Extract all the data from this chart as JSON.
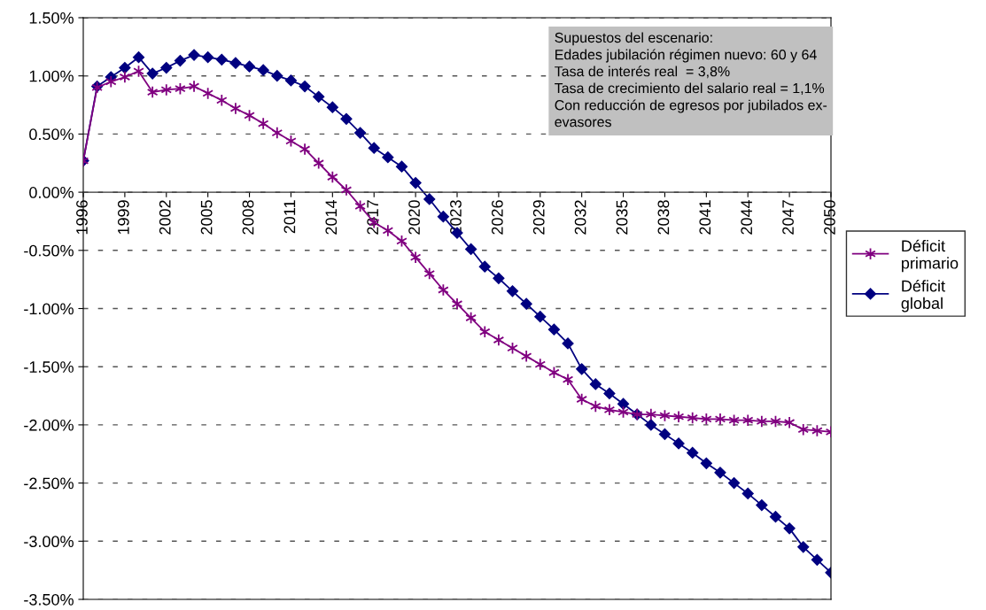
{
  "chart_data": {
    "type": "line",
    "x": [
      1996,
      1997,
      1998,
      1999,
      2000,
      2001,
      2002,
      2003,
      2004,
      2005,
      2006,
      2007,
      2008,
      2009,
      2010,
      2011,
      2012,
      2013,
      2014,
      2015,
      2016,
      2017,
      2018,
      2019,
      2020,
      2021,
      2022,
      2023,
      2024,
      2025,
      2026,
      2027,
      2028,
      2029,
      2030,
      2031,
      2032,
      2033,
      2034,
      2035,
      2036,
      2037,
      2038,
      2039,
      2040,
      2041,
      2042,
      2043,
      2044,
      2045,
      2046,
      2047,
      2048,
      2049,
      2050
    ],
    "series": [
      {
        "name": "Déficit primario",
        "color": "#800080",
        "marker": "cross",
        "values": [
          0.27,
          0.9,
          0.95,
          0.99,
          1.04,
          0.86,
          0.88,
          0.89,
          0.91,
          0.85,
          0.79,
          0.72,
          0.66,
          0.59,
          0.51,
          0.44,
          0.37,
          0.25,
          0.13,
          0.02,
          -0.12,
          -0.26,
          -0.33,
          -0.42,
          -0.56,
          -0.7,
          -0.84,
          -0.96,
          -1.08,
          -1.2,
          -1.27,
          -1.34,
          -1.41,
          -1.48,
          -1.55,
          -1.61,
          -1.78,
          -1.84,
          -1.87,
          -1.89,
          -1.91,
          -1.91,
          -1.92,
          -1.93,
          -1.94,
          -1.95,
          -1.95,
          -1.96,
          -1.96,
          -1.97,
          -1.97,
          -1.98,
          -2.04,
          -2.05,
          -2.06
        ]
      },
      {
        "name": "Déficit global",
        "color": "#000080",
        "marker": "diamond",
        "values": [
          0.27,
          0.91,
          0.99,
          1.07,
          1.16,
          1.02,
          1.07,
          1.13,
          1.18,
          1.16,
          1.14,
          1.11,
          1.08,
          1.05,
          1.0,
          0.96,
          0.91,
          0.82,
          0.73,
          0.63,
          0.51,
          0.38,
          0.3,
          0.22,
          0.08,
          -0.06,
          -0.21,
          -0.35,
          -0.49,
          -0.64,
          -0.74,
          -0.85,
          -0.96,
          -1.07,
          -1.18,
          -1.3,
          -1.52,
          -1.65,
          -1.73,
          -1.82,
          -1.91,
          -2.0,
          -2.08,
          -2.16,
          -2.24,
          -2.33,
          -2.41,
          -2.5,
          -2.59,
          -2.69,
          -2.79,
          -2.89,
          -3.05,
          -3.16,
          -3.27
        ]
      }
    ],
    "xlim": [
      1996,
      2050
    ],
    "xticks": [
      1996,
      1999,
      2002,
      2005,
      2008,
      2011,
      2014,
      2017,
      2020,
      2023,
      2026,
      2029,
      2032,
      2035,
      2038,
      2041,
      2044,
      2047,
      2050
    ],
    "ylim": [
      -3.5,
      1.5
    ],
    "yticks": [
      {
        "value": 1.5,
        "label": "1.50%"
      },
      {
        "value": 1.0,
        "label": "1.00%"
      },
      {
        "value": 0.5,
        "label": "0.50%"
      },
      {
        "value": 0,
        "label": "0.00%"
      },
      {
        "value": -0.5,
        "label": "-0.50%"
      },
      {
        "value": -1.0,
        "label": "-1.00%"
      },
      {
        "value": -1.5,
        "label": "-1.50%"
      },
      {
        "value": -2.0,
        "label": "-2.00%"
      },
      {
        "value": -2.5,
        "label": "-2.50%"
      },
      {
        "value": -3.0,
        "label": "-3.00%"
      },
      {
        "value": -3.5,
        "label": "-3.50%"
      }
    ],
    "grid": "y",
    "legend": "right",
    "line_style": "solid",
    "annotations": [
      "Supuestos del escenario:\nEdades jubilación régimen nuevo: 60 y 64\nTasa de interés real  = 3,8%\nTasa de crecimiento del salario real = 1,1%\nCon reducción de egresos por jubilados ex-\nevasores"
    ]
  }
}
